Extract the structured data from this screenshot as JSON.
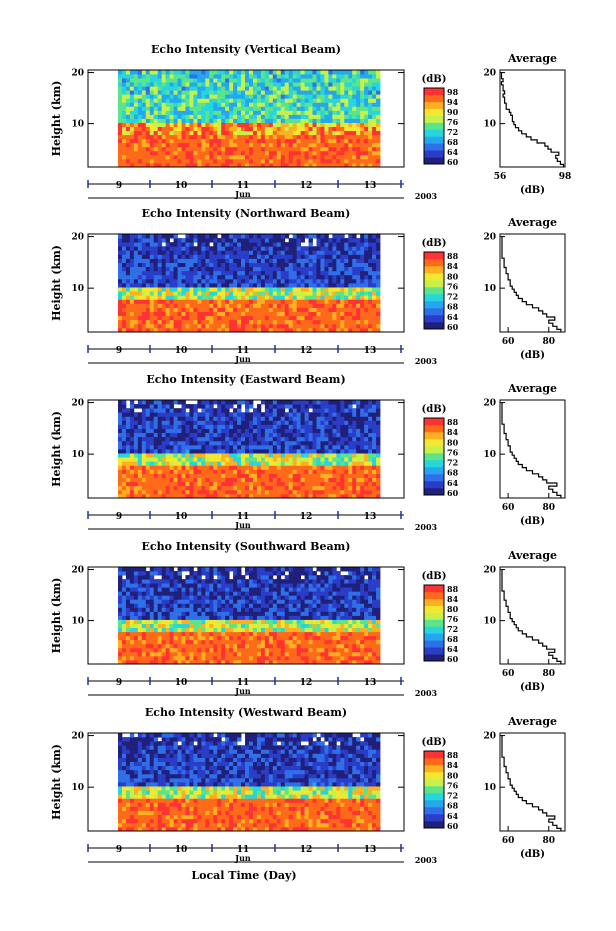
{
  "colors": {
    "colormap": [
      "#20207a",
      "#2a3dc8",
      "#2f6fe8",
      "#24a7ee",
      "#27d6dc",
      "#5be48a",
      "#c8f04a",
      "#f2e830",
      "#ffb020",
      "#ff6a1a",
      "#ff3333"
    ],
    "frame": "#000000",
    "time_marker": "#1f2f9a"
  },
  "common": {
    "ylabel": "Height (km)",
    "month": "Jun",
    "year": "2003",
    "xlabel": "Local Time (Day)",
    "colorbar_unit": "(dB)",
    "avg_title": "Average",
    "avg_xlabel": "(dB)"
  },
  "chart_data": [
    {
      "type": "heatmap",
      "title": "Echo Intensity (Vertical Beam)",
      "x_ticks": [
        "9",
        "10",
        "11",
        "12",
        "13"
      ],
      "y_ticks": [
        "20",
        "10"
      ],
      "ylim": [
        1.5,
        20.5
      ],
      "colorbar_ticks": [
        "98",
        "94",
        "90",
        "76",
        "72",
        "68",
        "64",
        "60"
      ],
      "colorbar_range": [
        56,
        98
      ],
      "base": 95,
      "average": {
        "type": "line",
        "xlim": [
          56,
          98
        ],
        "ylim": [
          1.5,
          20.5
        ],
        "x_ticks": [
          "56",
          "98"
        ],
        "y_ticks": [
          "20",
          "10"
        ],
        "x": [
          97,
          95,
          93,
          92,
          94,
          89,
          87,
          85,
          80,
          76,
          73,
          70,
          68,
          66,
          65,
          64,
          64,
          63,
          62,
          60,
          60,
          59,
          59,
          58,
          59,
          58,
          58,
          57,
          58,
          57
        ],
        "y": [
          2.0,
          2.6,
          3.2,
          3.8,
          4.4,
          5.0,
          5.6,
          6.2,
          6.8,
          7.4,
          8.0,
          8.6,
          9.2,
          9.8,
          10.4,
          11.0,
          11.6,
          12.2,
          12.8,
          13.4,
          14.0,
          14.6,
          15.2,
          15.8,
          16.4,
          17.0,
          17.6,
          18.2,
          18.8,
          19.4
        ]
      }
    },
    {
      "type": "heatmap",
      "title": "Echo Intensity (Northward Beam)",
      "x_ticks": [
        "9",
        "10",
        "11",
        "12",
        "13"
      ],
      "y_ticks": [
        "20",
        "10"
      ],
      "ylim": [
        1.5,
        20.5
      ],
      "colorbar_ticks": [
        "88",
        "84",
        "80",
        "76",
        "72",
        "68",
        "64",
        "60"
      ],
      "colorbar_range": [
        56,
        88
      ],
      "base": 85,
      "average": {
        "type": "line",
        "xlim": [
          56,
          88
        ],
        "ylim": [
          1.5,
          20.5
        ],
        "x_ticks": [
          "60",
          "80"
        ],
        "y_ticks": [
          "20",
          "10"
        ],
        "x": [
          86,
          84,
          82,
          80,
          83,
          79,
          77,
          75,
          72,
          69,
          67,
          65,
          64,
          63,
          62,
          61,
          61,
          60,
          60,
          59,
          59,
          58,
          58,
          58,
          57,
          57,
          57,
          57,
          57,
          57
        ],
        "y": [
          2.0,
          2.6,
          3.2,
          3.8,
          4.4,
          5.0,
          5.6,
          6.2,
          6.8,
          7.4,
          8.0,
          8.6,
          9.2,
          9.8,
          10.4,
          11.0,
          11.6,
          12.2,
          12.8,
          13.4,
          14.0,
          14.6,
          15.2,
          15.8,
          16.4,
          17.0,
          17.6,
          18.2,
          18.8,
          19.4
        ]
      }
    },
    {
      "type": "heatmap",
      "title": "Echo Intensity (Eastward Beam)",
      "x_ticks": [
        "9",
        "10",
        "11",
        "12",
        "13"
      ],
      "y_ticks": [
        "20",
        "10"
      ],
      "ylim": [
        1.5,
        20.5
      ],
      "colorbar_ticks": [
        "88",
        "84",
        "80",
        "76",
        "72",
        "68",
        "64",
        "60"
      ],
      "colorbar_range": [
        56,
        88
      ],
      "base": 85,
      "average": {
        "type": "line",
        "xlim": [
          56,
          88
        ],
        "ylim": [
          1.5,
          20.5
        ],
        "x_ticks": [
          "60",
          "80"
        ],
        "y_ticks": [
          "20",
          "10"
        ],
        "x": [
          86,
          84,
          82,
          80,
          84,
          79,
          77,
          75,
          72,
          69,
          67,
          65,
          64,
          63,
          62,
          61,
          61,
          60,
          60,
          59,
          59,
          58,
          58,
          58,
          57,
          57,
          57,
          57,
          57,
          57
        ],
        "y": [
          2.0,
          2.6,
          3.2,
          3.8,
          4.4,
          5.0,
          5.6,
          6.2,
          6.8,
          7.4,
          8.0,
          8.6,
          9.2,
          9.8,
          10.4,
          11.0,
          11.6,
          12.2,
          12.8,
          13.4,
          14.0,
          14.6,
          15.2,
          15.8,
          16.4,
          17.0,
          17.6,
          18.2,
          18.8,
          19.4
        ]
      }
    },
    {
      "type": "heatmap",
      "title": "Echo Intensity (Southward Beam)",
      "x_ticks": [
        "9",
        "10",
        "11",
        "12",
        "13"
      ],
      "y_ticks": [
        "20",
        "10"
      ],
      "ylim": [
        1.5,
        20.5
      ],
      "colorbar_ticks": [
        "88",
        "84",
        "80",
        "76",
        "72",
        "68",
        "64",
        "60"
      ],
      "colorbar_range": [
        56,
        88
      ],
      "base": 85,
      "average": {
        "type": "line",
        "xlim": [
          56,
          88
        ],
        "ylim": [
          1.5,
          20.5
        ],
        "x_ticks": [
          "60",
          "80"
        ],
        "y_ticks": [
          "20",
          "10"
        ],
        "x": [
          86,
          84,
          82,
          80,
          83,
          79,
          77,
          75,
          72,
          69,
          67,
          65,
          64,
          63,
          62,
          61,
          61,
          60,
          60,
          59,
          59,
          58,
          58,
          58,
          57,
          57,
          57,
          57,
          57,
          57
        ],
        "y": [
          2.0,
          2.6,
          3.2,
          3.8,
          4.4,
          5.0,
          5.6,
          6.2,
          6.8,
          7.4,
          8.0,
          8.6,
          9.2,
          9.8,
          10.4,
          11.0,
          11.6,
          12.2,
          12.8,
          13.4,
          14.0,
          14.6,
          15.2,
          15.8,
          16.4,
          17.0,
          17.6,
          18.2,
          18.8,
          19.4
        ]
      }
    },
    {
      "type": "heatmap",
      "title": "Echo Intensity (Westward Beam)",
      "x_ticks": [
        "9",
        "10",
        "11",
        "12",
        "13"
      ],
      "y_ticks": [
        "20",
        "10"
      ],
      "ylim": [
        1.5,
        20.5
      ],
      "colorbar_ticks": [
        "88",
        "84",
        "80",
        "76",
        "72",
        "68",
        "64",
        "60"
      ],
      "colorbar_range": [
        56,
        88
      ],
      "base": 85,
      "average": {
        "type": "line",
        "xlim": [
          56,
          88
        ],
        "ylim": [
          1.5,
          20.5
        ],
        "x_ticks": [
          "60",
          "80"
        ],
        "y_ticks": [
          "20",
          "10"
        ],
        "x": [
          86,
          84,
          82,
          80,
          83,
          79,
          77,
          75,
          72,
          69,
          67,
          65,
          64,
          63,
          62,
          61,
          61,
          60,
          60,
          59,
          59,
          58,
          58,
          58,
          57,
          57,
          57,
          57,
          57,
          57
        ],
        "y": [
          2.0,
          2.6,
          3.2,
          3.8,
          4.4,
          5.0,
          5.6,
          6.2,
          6.8,
          7.4,
          8.0,
          8.6,
          9.2,
          9.8,
          10.4,
          11.0,
          11.6,
          12.2,
          12.8,
          13.4,
          14.0,
          14.6,
          15.2,
          15.8,
          16.4,
          17.0,
          17.6,
          18.2,
          18.8,
          19.4
        ]
      }
    }
  ]
}
